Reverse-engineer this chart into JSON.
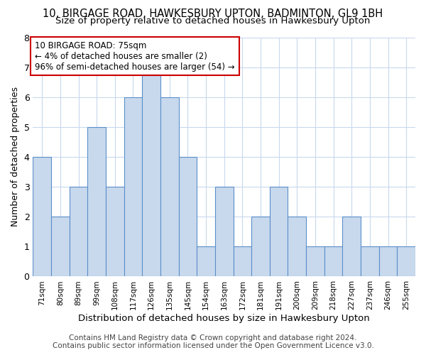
{
  "title": "10, BIRGAGE ROAD, HAWKESBURY UPTON, BADMINTON, GL9 1BH",
  "subtitle": "Size of property relative to detached houses in Hawkesbury Upton",
  "xlabel": "Distribution of detached houses by size in Hawkesbury Upton",
  "ylabel": "Number of detached properties",
  "categories": [
    "71sqm",
    "80sqm",
    "89sqm",
    "99sqm",
    "108sqm",
    "117sqm",
    "126sqm",
    "135sqm",
    "145sqm",
    "154sqm",
    "163sqm",
    "172sqm",
    "181sqm",
    "191sqm",
    "200sqm",
    "209sqm",
    "218sqm",
    "227sqm",
    "237sqm",
    "246sqm",
    "255sqm"
  ],
  "values": [
    4,
    2,
    3,
    5,
    3,
    6,
    7,
    6,
    4,
    1,
    3,
    1,
    2,
    3,
    2,
    1,
    1,
    2,
    1,
    1,
    1
  ],
  "bar_color": "#c8d9ed",
  "bar_edge_color": "#5b8fc9",
  "annotation_box_text": "10 BIRGAGE ROAD: 75sqm\n← 4% of detached houses are smaller (2)\n96% of semi-detached houses are larger (54) →",
  "annotation_box_edgecolor": "#cc0000",
  "annotation_box_facecolor": "#ffffff",
  "ylim": [
    0,
    8
  ],
  "yticks": [
    0,
    1,
    2,
    3,
    4,
    5,
    6,
    7,
    8
  ],
  "footer_line1": "Contains HM Land Registry data © Crown copyright and database right 2024.",
  "footer_line2": "Contains public sector information licensed under the Open Government Licence v3.0.",
  "background_color": "#ffffff",
  "grid_color": "#c8d9ed",
  "title_fontsize": 10.5,
  "subtitle_fontsize": 9.5,
  "annotation_fontsize": 8.5,
  "footer_fontsize": 7.5,
  "xlabel_fontsize": 9.5,
  "ylabel_fontsize": 9.0
}
